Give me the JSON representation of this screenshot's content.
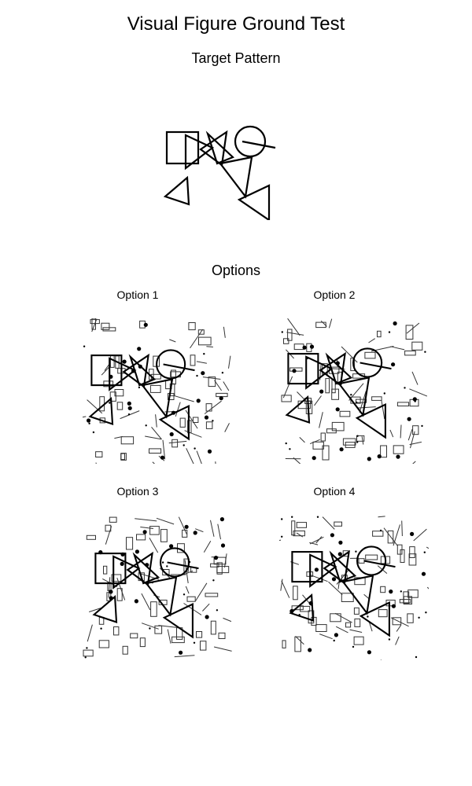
{
  "title": "Visual Figure Ground Test",
  "target_heading": "Target Pattern",
  "options_heading": "Options",
  "options": [
    {
      "label": "Option 1"
    },
    {
      "label": "Option 2"
    },
    {
      "label": "Option 3"
    },
    {
      "label": "Option 4"
    }
  ],
  "colors": {
    "ink": "#000000",
    "background": "#ffffff",
    "distractor": "#333333"
  }
}
